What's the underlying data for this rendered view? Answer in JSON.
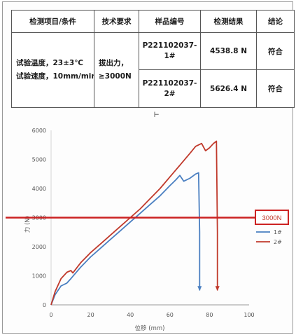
{
  "table": {
    "headers": [
      "检测项目/条件",
      "技术要求",
      "样品编号",
      "检测结果",
      "结论"
    ],
    "condition_lines": [
      "试验温度，23±3℃",
      "试验速度，10mm/min"
    ],
    "requirement_lines": [
      "拔出力，",
      "≥3000N"
    ],
    "rows": [
      {
        "sample": "P221102037-1#",
        "result": "4538.8 N",
        "conclusion": "符合"
      },
      {
        "sample": "P221102037-2#",
        "result": "5626.4 N",
        "conclusion": "符合"
      }
    ]
  },
  "chart_data": {
    "type": "line",
    "xlabel": "位移 (mm)",
    "ylabel": "力 (N)",
    "xlim": [
      0,
      100
    ],
    "ylim": [
      0,
      6000
    ],
    "xticks": [
      "0",
      "20",
      "40",
      "60",
      "80",
      "100"
    ],
    "yticks": [
      "0",
      "1000",
      "2000",
      "3000",
      "4000",
      "5000",
      "6000"
    ],
    "legend_position": "right",
    "grid": false,
    "reference_line": {
      "value": 3000,
      "label": "3000N",
      "color": "#cc2222"
    },
    "series": [
      {
        "name": "1#",
        "color": "#4a7fc1",
        "x": [
          0,
          2,
          5,
          8,
          10,
          15,
          20,
          25,
          30,
          35,
          40,
          45,
          50,
          55,
          60,
          63,
          65,
          67,
          70,
          73,
          74.5,
          75,
          75
        ],
        "y": [
          0,
          350,
          650,
          750,
          900,
          1300,
          1650,
          1950,
          2250,
          2550,
          2850,
          3150,
          3450,
          3750,
          4100,
          4300,
          4450,
          4250,
          4350,
          4500,
          4538.8,
          2500,
          500
        ]
      },
      {
        "name": "2#",
        "color": "#c0392b",
        "x": [
          0,
          2,
          5,
          8,
          10,
          11,
          15,
          20,
          25,
          30,
          35,
          40,
          45,
          50,
          55,
          60,
          65,
          70,
          73,
          76,
          78,
          80,
          82,
          83.5,
          84,
          84
        ],
        "y": [
          0,
          450,
          900,
          1120,
          1180,
          1100,
          1450,
          1800,
          2100,
          2400,
          2700,
          3000,
          3300,
          3650,
          4000,
          4400,
          4800,
          5200,
          5450,
          5550,
          5300,
          5400,
          5550,
          5626.4,
          2500,
          500
        ]
      }
    ]
  }
}
